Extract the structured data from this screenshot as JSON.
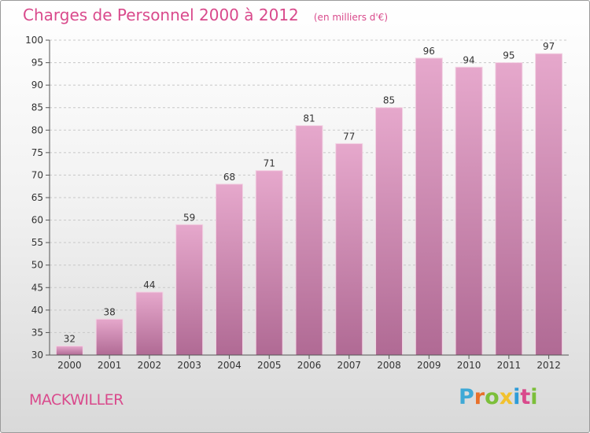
{
  "header": {
    "title": "Charges de Personnel 2000 à 2012",
    "subtitle": "(en milliers d'€)"
  },
  "footer": {
    "commune": "MACKWILLER",
    "brand": "Proxiti",
    "brand_colors": [
      "#3fa9d6",
      "#e8702a",
      "#7cbf3a",
      "#f2c12e",
      "#2e9cd8",
      "#d94a8c",
      "#7cbf3a"
    ]
  },
  "colors": {
    "bar_top": "#e6a8cc",
    "bar_bottom": "#b06a94",
    "accent": "#d94a8c"
  },
  "chart_data": {
    "type": "bar",
    "title": "Charges de Personnel 2000 à 2012",
    "subtitle": "(en milliers d'€)",
    "xlabel": "",
    "ylabel": "",
    "categories": [
      "2000",
      "2001",
      "2002",
      "2003",
      "2004",
      "2005",
      "2006",
      "2007",
      "2008",
      "2009",
      "2010",
      "2011",
      "2012"
    ],
    "values": [
      32,
      38,
      44,
      59,
      68,
      71,
      81,
      77,
      85,
      96,
      94,
      95,
      97
    ],
    "ylim": [
      30,
      100
    ],
    "yticks": [
      30,
      35,
      40,
      45,
      50,
      55,
      60,
      65,
      70,
      75,
      80,
      85,
      90,
      95,
      100
    ],
    "grid": true
  }
}
